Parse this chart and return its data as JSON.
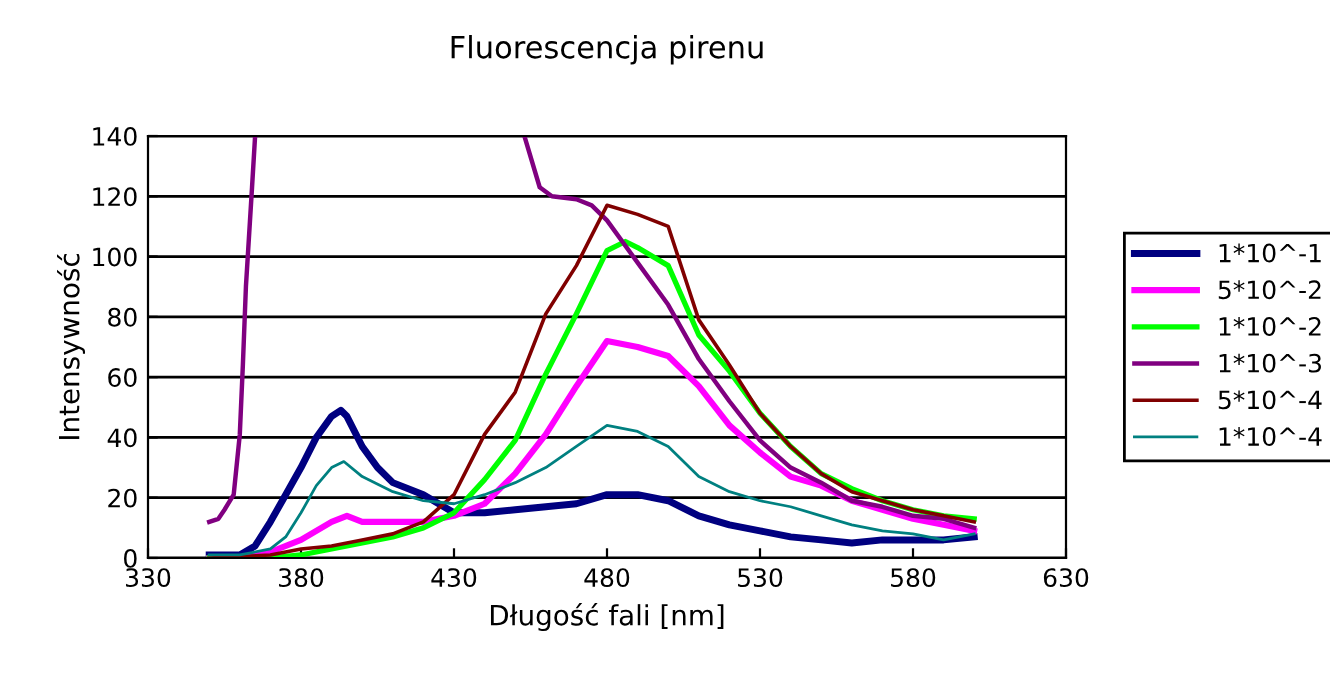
{
  "chart_data": {
    "type": "line",
    "title": "Fluorescencja pirenu",
    "xlabel": "Długość fali [nm]",
    "ylabel": "Intensywność",
    "xlim": [
      330,
      630
    ],
    "xticks": [
      330,
      380,
      430,
      480,
      530,
      580,
      630
    ],
    "ylim": [
      0,
      140
    ],
    "yticks": [
      0,
      20,
      40,
      60,
      80,
      100,
      120,
      140
    ],
    "grid": "y",
    "legend": "right",
    "marker": "none",
    "line_style": "solid",
    "series": [
      {
        "name": "1*10^-1",
        "color": "#000080",
        "x": [
          350,
          360,
          365,
          370,
          375,
          380,
          385,
          390,
          393,
          395,
          400,
          405,
          410,
          420,
          425,
          430,
          440,
          450,
          460,
          470,
          480,
          490,
          500,
          510,
          520,
          530,
          540,
          550,
          560,
          570,
          580,
          590,
          600
        ],
        "values": [
          1,
          1,
          4,
          12,
          21,
          30,
          40,
          47,
          49,
          47,
          37,
          30,
          25,
          21,
          18,
          15,
          15,
          16,
          17,
          18,
          21,
          21,
          19,
          14,
          11,
          9,
          7,
          6,
          5,
          6,
          6,
          6,
          7
        ]
      },
      {
        "name": "5*10^-2",
        "color": "#ff00ff",
        "x": [
          350,
          360,
          370,
          380,
          390,
          395,
          400,
          410,
          420,
          430,
          440,
          450,
          460,
          470,
          480,
          490,
          500,
          510,
          520,
          530,
          540,
          550,
          560,
          570,
          580,
          590,
          600
        ],
        "values": [
          0,
          0,
          2,
          6,
          12,
          14,
          12,
          12,
          12,
          14,
          18,
          28,
          41,
          57,
          72,
          70,
          67,
          57,
          44,
          35,
          27,
          24,
          19,
          16,
          13,
          11,
          9
        ]
      },
      {
        "name": "1*10^-2",
        "color": "#00ff00",
        "x": [
          350,
          370,
          380,
          390,
          400,
          410,
          420,
          430,
          440,
          450,
          460,
          470,
          480,
          486,
          490,
          500,
          510,
          520,
          530,
          540,
          550,
          560,
          570,
          580,
          590,
          600
        ],
        "values": [
          0,
          0,
          1,
          3,
          5,
          7,
          10,
          15,
          26,
          39,
          61,
          81,
          102,
          105,
          103,
          97,
          74,
          62,
          48,
          37,
          28,
          23,
          19,
          16,
          14,
          13
        ]
      },
      {
        "name": "1*10^-3",
        "color": "#800080",
        "x": [
          350,
          353,
          355,
          358,
          360,
          361,
          362,
          364,
          365,
          400,
          453,
          458,
          462,
          470,
          475,
          480,
          490,
          500,
          510,
          520,
          530,
          540,
          550,
          560,
          570,
          580,
          590,
          600
        ],
        "values": [
          12,
          13,
          16,
          21,
          41,
          64,
          90,
          123,
          140,
          null,
          140,
          123,
          120,
          119,
          117,
          112,
          98,
          84,
          66,
          52,
          39,
          30,
          25,
          19,
          17,
          14,
          13,
          10
        ]
      },
      {
        "name": "5*10^-4",
        "color": "#800000",
        "x": [
          350,
          370,
          380,
          390,
          400,
          410,
          420,
          430,
          440,
          450,
          460,
          470,
          480,
          490,
          500,
          510,
          520,
          530,
          540,
          550,
          560,
          570,
          580,
          590,
          600
        ],
        "values": [
          0,
          1,
          3,
          4,
          6,
          8,
          12,
          21,
          41,
          55,
          81,
          97,
          117,
          114,
          110,
          79,
          64,
          48,
          37,
          28,
          22,
          19,
          16,
          14,
          12
        ]
      },
      {
        "name": "1*10^-4",
        "color": "#008080",
        "x": [
          350,
          360,
          370,
          375,
          380,
          385,
          390,
          394,
          400,
          410,
          420,
          430,
          440,
          450,
          460,
          470,
          480,
          490,
          500,
          510,
          520,
          530,
          540,
          550,
          560,
          570,
          580,
          590,
          600
        ],
        "values": [
          1,
          1,
          3,
          7,
          15,
          24,
          30,
          32,
          27,
          22,
          19,
          18,
          21,
          25,
          30,
          37,
          44,
          42,
          37,
          27,
          22,
          19,
          17,
          14,
          11,
          9,
          8,
          6,
          8
        ]
      }
    ]
  }
}
